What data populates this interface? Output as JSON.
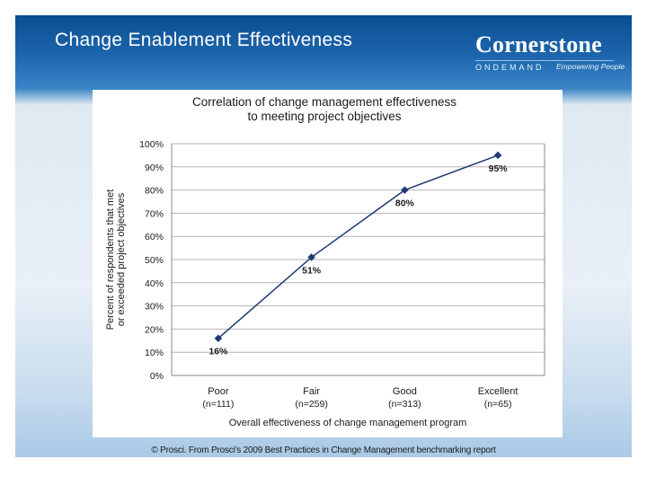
{
  "slide": {
    "title": "Change Enablement Effectiveness",
    "logo": {
      "name": "Cornerstone",
      "sub": "ONDEMAND",
      "tagline": "Empowering People"
    },
    "source": "© Prosci. From Prosci's 2009 Best Practices in Change Management benchmarking report"
  },
  "chart_data": {
    "type": "line",
    "title_lines": [
      "Correlation of change management effectiveness",
      "to meeting project objectives"
    ],
    "ylabel_lines": [
      "Percent of respondents that met",
      "or exceeded project objectives"
    ],
    "xlabel": "Overall effectiveness of change management program",
    "categories": [
      "Poor",
      "Fair",
      "Good",
      "Excellent"
    ],
    "category_sublabels": [
      "(n=111)",
      "(n=259)",
      "(n=313)",
      "(n=65)"
    ],
    "yticks": [
      "0%",
      "10%",
      "20%",
      "30%",
      "40%",
      "50%",
      "60%",
      "70%",
      "80%",
      "90%",
      "100%"
    ],
    "ylim": [
      0,
      100
    ],
    "values": [
      16,
      51,
      80,
      95
    ],
    "data_labels": [
      "16%",
      "51%",
      "80%",
      "95%"
    ],
    "grid": true,
    "colors": {
      "line": "#1f3a73",
      "grid": "#b3b3b3"
    }
  }
}
